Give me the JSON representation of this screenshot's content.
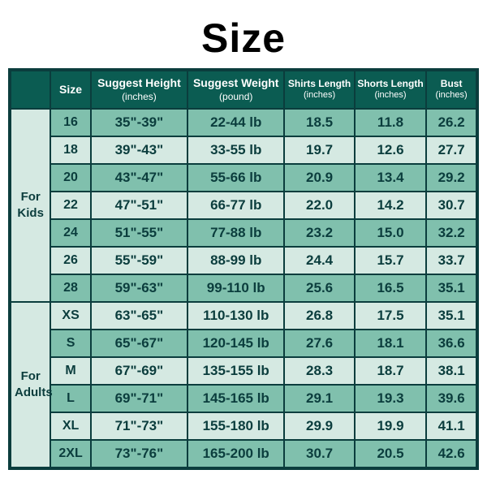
{
  "title": "Size",
  "headers": {
    "size": {
      "main": "Size"
    },
    "height": {
      "main": "Suggest Height",
      "sub": "(inches)"
    },
    "weight": {
      "main": "Suggest Weight",
      "sub": "(pound)"
    },
    "shirts": {
      "main": "Shirts Length",
      "sub": "(inches)"
    },
    "shorts": {
      "main": "Shorts Length",
      "sub": "(inches)"
    },
    "bust": {
      "main": "Bust",
      "sub": "(inches)"
    }
  },
  "groups": [
    {
      "label": "For\nKids",
      "rows": [
        {
          "size": "16",
          "height": "35\"-39\"",
          "weight": "22-44 lb",
          "shirts": "18.5",
          "shorts": "11.8",
          "bust": "26.2"
        },
        {
          "size": "18",
          "height": "39\"-43\"",
          "weight": "33-55 lb",
          "shirts": "19.7",
          "shorts": "12.6",
          "bust": "27.7"
        },
        {
          "size": "20",
          "height": "43\"-47\"",
          "weight": "55-66 lb",
          "shirts": "20.9",
          "shorts": "13.4",
          "bust": "29.2"
        },
        {
          "size": "22",
          "height": "47\"-51\"",
          "weight": "66-77 lb",
          "shirts": "22.0",
          "shorts": "14.2",
          "bust": "30.7"
        },
        {
          "size": "24",
          "height": "51\"-55\"",
          "weight": "77-88 lb",
          "shirts": "23.2",
          "shorts": "15.0",
          "bust": "32.2"
        },
        {
          "size": "26",
          "height": "55\"-59\"",
          "weight": "88-99 lb",
          "shirts": "24.4",
          "shorts": "15.7",
          "bust": "33.7"
        },
        {
          "size": "28",
          "height": "59\"-63\"",
          "weight": "99-110 lb",
          "shirts": "25.6",
          "shorts": "16.5",
          "bust": "35.1"
        }
      ]
    },
    {
      "label": "For\nAdults",
      "rows": [
        {
          "size": "XS",
          "height": "63\"-65\"",
          "weight": "110-130 lb",
          "shirts": "26.8",
          "shorts": "17.5",
          "bust": "35.1"
        },
        {
          "size": "S",
          "height": "65\"-67\"",
          "weight": "120-145 lb",
          "shirts": "27.6",
          "shorts": "18.1",
          "bust": "36.6"
        },
        {
          "size": "M",
          "height": "67\"-69\"",
          "weight": "135-155 lb",
          "shirts": "28.3",
          "shorts": "18.7",
          "bust": "38.1"
        },
        {
          "size": "L",
          "height": "69\"-71\"",
          "weight": "145-165 lb",
          "shirts": "29.1",
          "shorts": "19.3",
          "bust": "39.6"
        },
        {
          "size": "XL",
          "height": "71\"-73\"",
          "weight": "155-180 lb",
          "shirts": "29.9",
          "shorts": "19.9",
          "bust": "41.1"
        },
        {
          "size": "2XL",
          "height": "73\"-76\"",
          "weight": "165-200 lb",
          "shirts": "30.7",
          "shorts": "20.5",
          "bust": "42.6"
        }
      ]
    }
  ],
  "style": {
    "header_bg": "#0b5c52",
    "header_fg": "#ffffff",
    "row_light": "#d5e9e2",
    "row_dark": "#80c0ad",
    "border": "#0b3d3d",
    "text": "#0b3d3d",
    "title_color": "#000000",
    "title_fontsize": 50,
    "cell_fontsize": 17,
    "header_fontsize": 14
  }
}
